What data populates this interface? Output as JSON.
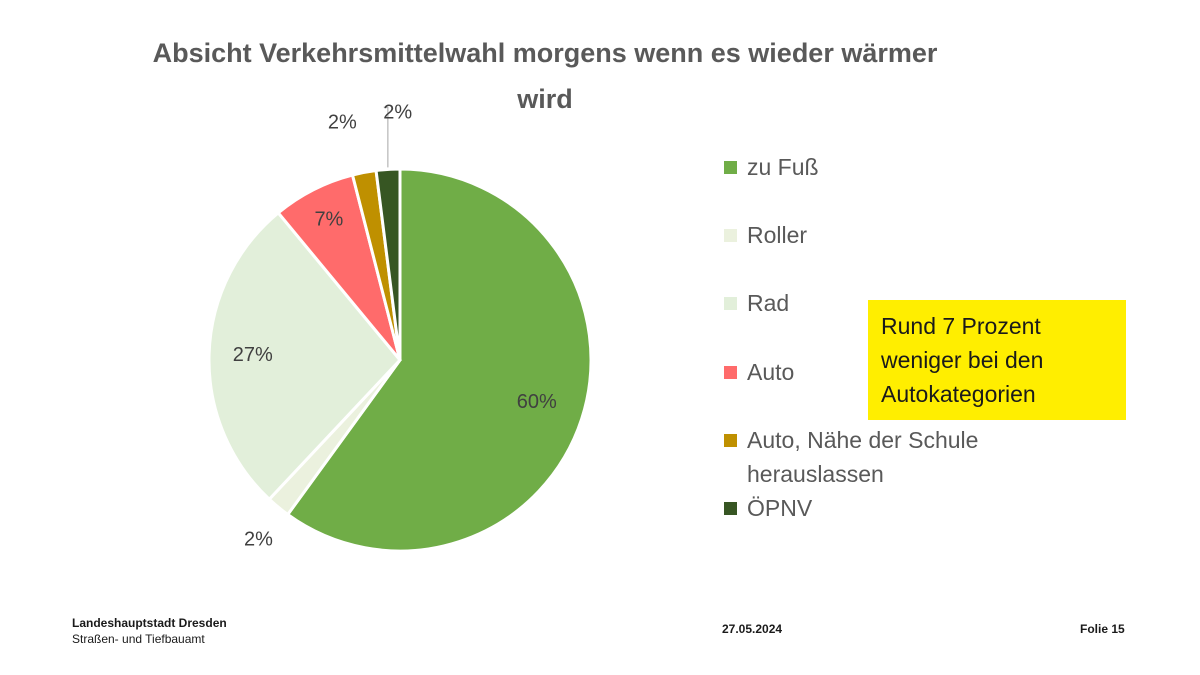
{
  "chart_data": {
    "type": "pie",
    "title": "Absicht Verkehrsmittelwahl morgens wenn es wieder wärmer wird",
    "legend_position": "right",
    "categories": [
      "zu Fuß",
      "Roller",
      "Rad",
      "Auto",
      "Auto, Nähe der Schule herauslassen",
      "ÖPNV"
    ],
    "values": [
      60,
      2,
      27,
      7,
      2,
      2
    ],
    "data_labels": [
      "60%",
      "2%",
      "27%",
      "7%",
      "2%",
      "2%"
    ],
    "colors": [
      "#70ad47",
      "#ebf1de",
      "#e2efda",
      "#ff6b6b",
      "#bf9000",
      "#375623"
    ]
  },
  "callout": {
    "text": "Rund 7 Prozent\nweniger bei den\nAutokategorien",
    "background": "#ffee00"
  },
  "footer": {
    "organization": "Landeshauptstadt Dresden",
    "department": "Straßen- und Tiefbauamt",
    "date": "27.05.2024",
    "slide": "Folie 15"
  }
}
